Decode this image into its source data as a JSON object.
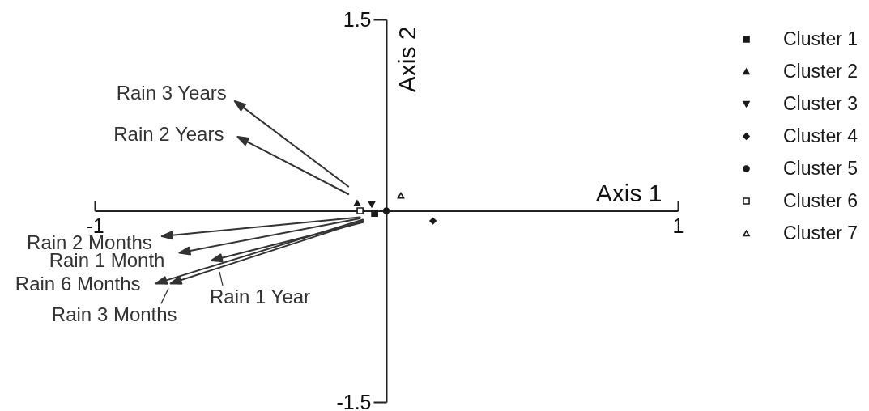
{
  "chart_data": {
    "type": "scatter",
    "xlabel": "Axis 1",
    "ylabel": "Axis 2",
    "xlim": [
      -1,
      1
    ],
    "ylim": [
      -1.5,
      1.5
    ],
    "xticks": [
      -1,
      1
    ],
    "yticks": [
      -1.5,
      1.5
    ],
    "grid": false,
    "legend": "right",
    "series": [
      {
        "name": "Cluster 1",
        "marker": "square",
        "color": "#1a1a1a",
        "x": [
          -0.04
        ],
        "values": [
          -0.02
        ]
      },
      {
        "name": "Cluster 2",
        "marker": "triangle",
        "color": "#1a1a1a",
        "x": [
          -0.1
        ],
        "values": [
          0.06
        ]
      },
      {
        "name": "Cluster 3",
        "marker": "triangle-down",
        "color": "#1a1a1a",
        "x": [
          -0.05
        ],
        "values": [
          0.05
        ]
      },
      {
        "name": "Cluster 4",
        "marker": "diamond",
        "color": "#1a1a1a",
        "x": [
          0.16
        ],
        "values": [
          -0.08
        ]
      },
      {
        "name": "Cluster 5",
        "marker": "circle",
        "color": "#1a1a1a",
        "x": [
          0.0
        ],
        "values": [
          0.0
        ]
      },
      {
        "name": "Cluster 6",
        "marker": "square-open",
        "color": "#1a1a1a",
        "x": [
          -0.09
        ],
        "values": [
          0.0
        ]
      },
      {
        "name": "Cluster 7",
        "marker": "triangle-open",
        "color": "#1a1a1a",
        "x": [
          0.05
        ],
        "values": [
          0.12
        ]
      },
      {
        "name": "Rain 3 Years",
        "type": "line",
        "color": "#333333",
        "x": [
          -0.13,
          -0.52
        ],
        "values": [
          0.19,
          0.86
        ]
      },
      {
        "name": "Rain 2 Years",
        "type": "line",
        "color": "#333333",
        "x": [
          -0.13,
          -0.51
        ],
        "values": [
          0.13,
          0.58
        ]
      },
      {
        "name": "Rain 2 Months",
        "type": "line",
        "color": "#333333",
        "x": [
          -0.09,
          -0.77
        ],
        "values": [
          -0.05,
          -0.2
        ]
      },
      {
        "name": "Rain 1 Month",
        "type": "line",
        "color": "#333333",
        "x": [
          -0.09,
          -0.71
        ],
        "values": [
          -0.06,
          -0.33
        ]
      },
      {
        "name": "Rain 6 Months",
        "type": "line",
        "color": "#333333",
        "x": [
          -0.08,
          -0.79
        ],
        "values": [
          -0.07,
          -0.57
        ]
      },
      {
        "name": "Rain 3 Months",
        "type": "line",
        "color": "#333333",
        "x": [
          -0.08,
          -0.74
        ],
        "values": [
          -0.08,
          -0.57
        ]
      },
      {
        "name": "Rain 1 Year",
        "type": "line",
        "color": "#333333",
        "x": [
          -0.08,
          -0.6
        ],
        "values": [
          -0.09,
          -0.39
        ]
      }
    ]
  }
}
